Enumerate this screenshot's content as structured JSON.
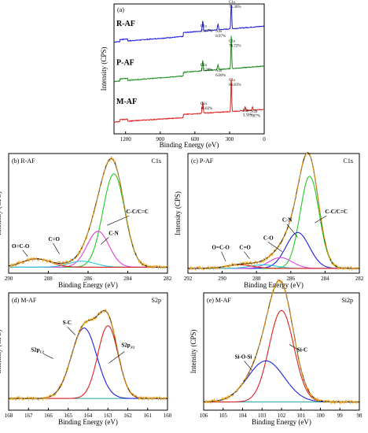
{
  "chart_data": [
    {
      "type": "line",
      "panel_label": "(a)",
      "xlabel": "Binding Energy (eV)",
      "ylabel": "Intensity (CPS)",
      "xlim": [
        1300,
        0
      ],
      "x_ticks": [
        1200,
        900,
        600,
        300,
        0
      ],
      "series": [
        {
          "name": "R-AF",
          "color": "#1f1fd8",
          "base": 0.83,
          "offset": 0.63,
          "peaks": [
            {
              "x": 532,
              "h": 0.3
            },
            {
              "x": 400,
              "h": 0.16
            },
            {
              "x": 285,
              "h": 1.0
            }
          ]
        },
        {
          "name": "P-AF",
          "color": "#1c8c1c",
          "base": 0.8,
          "offset": 0.33,
          "peaks": [
            {
              "x": 532,
              "h": 0.3
            },
            {
              "x": 400,
              "h": 0.14
            },
            {
              "x": 285,
              "h": 1.0
            }
          ]
        },
        {
          "name": "M-AF",
          "color": "#e02020",
          "base": 0.66,
          "offset": 0.03,
          "peaks": [
            {
              "x": 532,
              "h": 0.32
            },
            {
              "x": 285,
              "h": 1.0
            },
            {
              "x": 165,
              "h": 0.12
            },
            {
              "x": 101,
              "h": 0.1
            }
          ]
        }
      ],
      "annotations": [
        {
          "series": "R-AF",
          "x": 532,
          "lines": [
            "O1s",
            "15.67%"
          ]
        },
        {
          "series": "R-AF",
          "x": 400,
          "lines": [
            "N1s",
            "8.97%"
          ]
        },
        {
          "series": "R-AF",
          "x": 285,
          "lines": [
            "C1s",
            "75.36%"
          ]
        },
        {
          "series": "P-AF",
          "x": 532,
          "lines": [
            "O1s",
            "17.28%"
          ]
        },
        {
          "series": "P-AF",
          "x": 400,
          "lines": [
            "N1s",
            "6.00%"
          ]
        },
        {
          "series": "P-AF",
          "x": 285,
          "lines": [
            "C1s",
            "76.72%"
          ]
        },
        {
          "series": "M-AF",
          "x": 532,
          "lines": [
            "O1s",
            "16.82%"
          ]
        },
        {
          "series": "M-AF",
          "x": 285,
          "lines": [
            "C1s",
            "66.81%"
          ]
        },
        {
          "series": "M-AF",
          "x": 165,
          "lines": [
            "S2p",
            "3.50%"
          ]
        },
        {
          "series": "M-AF",
          "x": 101,
          "lines": [
            "Si2p",
            "7.87%"
          ]
        }
      ]
    },
    {
      "type": "line",
      "panel_label": "(b) R-AF",
      "region": "C1s",
      "xlabel": "Binding Energy (eV)",
      "ylabel": "Intensity (CPS)",
      "xlim": [
        290,
        282
      ],
      "x_ticks": [
        290,
        288,
        286,
        284,
        282
      ],
      "baseline": 0.05,
      "components": [
        {
          "name": "C-C/C=C",
          "center": 284.7,
          "fwhm": 1.3,
          "amp": 0.78,
          "color": "#22cc22"
        },
        {
          "name": "C-N",
          "center": 285.5,
          "fwhm": 1.3,
          "amp": 0.3,
          "color": "#e040e0"
        },
        {
          "name": "C=O",
          "center": 286.3,
          "fwhm": 1.6,
          "amp": 0.05,
          "color": "#28c8d8"
        },
        {
          "name": "O=C-O",
          "center": 288.6,
          "fwhm": 1.7,
          "amp": 0.07,
          "color": "#e02020"
        }
      ]
    },
    {
      "type": "line",
      "panel_label": "(c) P-AF",
      "region": "C1s",
      "xlabel": "Binding Energy (eV)",
      "ylabel": "Intensity (CPS)",
      "xlim": [
        292,
        282
      ],
      "x_ticks": [
        292,
        290,
        288,
        286,
        284,
        282
      ],
      "baseline": 0.04,
      "components": [
        {
          "name": "C-C/C=C",
          "center": 284.9,
          "fwhm": 1.3,
          "amp": 0.77,
          "color": "#22cc22"
        },
        {
          "name": "C-N",
          "center": 285.6,
          "fwhm": 1.6,
          "amp": 0.3,
          "color": "#2020e0"
        },
        {
          "name": "C-O",
          "center": 286.6,
          "fwhm": 1.6,
          "amp": 0.09,
          "color": "#e040e0"
        },
        {
          "name": "C=O",
          "center": 287.6,
          "fwhm": 1.8,
          "amp": 0.03,
          "color": "#28c8d8"
        },
        {
          "name": "O=C-O",
          "center": 289.0,
          "fwhm": 1.8,
          "amp": 0.03,
          "color": "#e02020"
        }
      ]
    },
    {
      "type": "line",
      "panel_label": "(d) M-AF",
      "region": "S2p",
      "xlabel": "Binding Energy (eV)",
      "ylabel": "Intensity (CPS)",
      "xlim": [
        168,
        160
      ],
      "x_ticks": [
        168,
        167,
        166,
        165,
        164,
        163,
        162,
        161,
        160
      ],
      "baseline": 0.1,
      "components": [
        {
          "name": "S2p1/2",
          "center": 164.2,
          "fwhm": 1.5,
          "amp": 0.6,
          "color": "#2020e0"
        },
        {
          "name": "S2p3/2",
          "center": 163.0,
          "fwhm": 1.2,
          "amp": 0.62,
          "color": "#e02020"
        }
      ],
      "labels": [
        "S-C"
      ]
    },
    {
      "type": "line",
      "panel_label": "(e) M-AF",
      "region": "Si2p",
      "xlabel": "Binding Energy (eV)",
      "ylabel": "Intensity (CPS)",
      "xlim": [
        106,
        98
      ],
      "x_ticks": [
        106,
        105,
        104,
        103,
        102,
        101,
        100,
        99,
        98
      ],
      "baseline": 0.07,
      "components": [
        {
          "name": "Si-C",
          "center": 102.0,
          "fwhm": 1.5,
          "amp": 0.78,
          "color": "#e02020"
        },
        {
          "name": "Si-O-Si",
          "center": 102.8,
          "fwhm": 2.2,
          "amp": 0.35,
          "color": "#2020e0"
        }
      ]
    }
  ],
  "colors": {
    "envelope": "#e8a020",
    "raw": "#111111",
    "background": "#20a0a0",
    "axis": "#000000"
  }
}
